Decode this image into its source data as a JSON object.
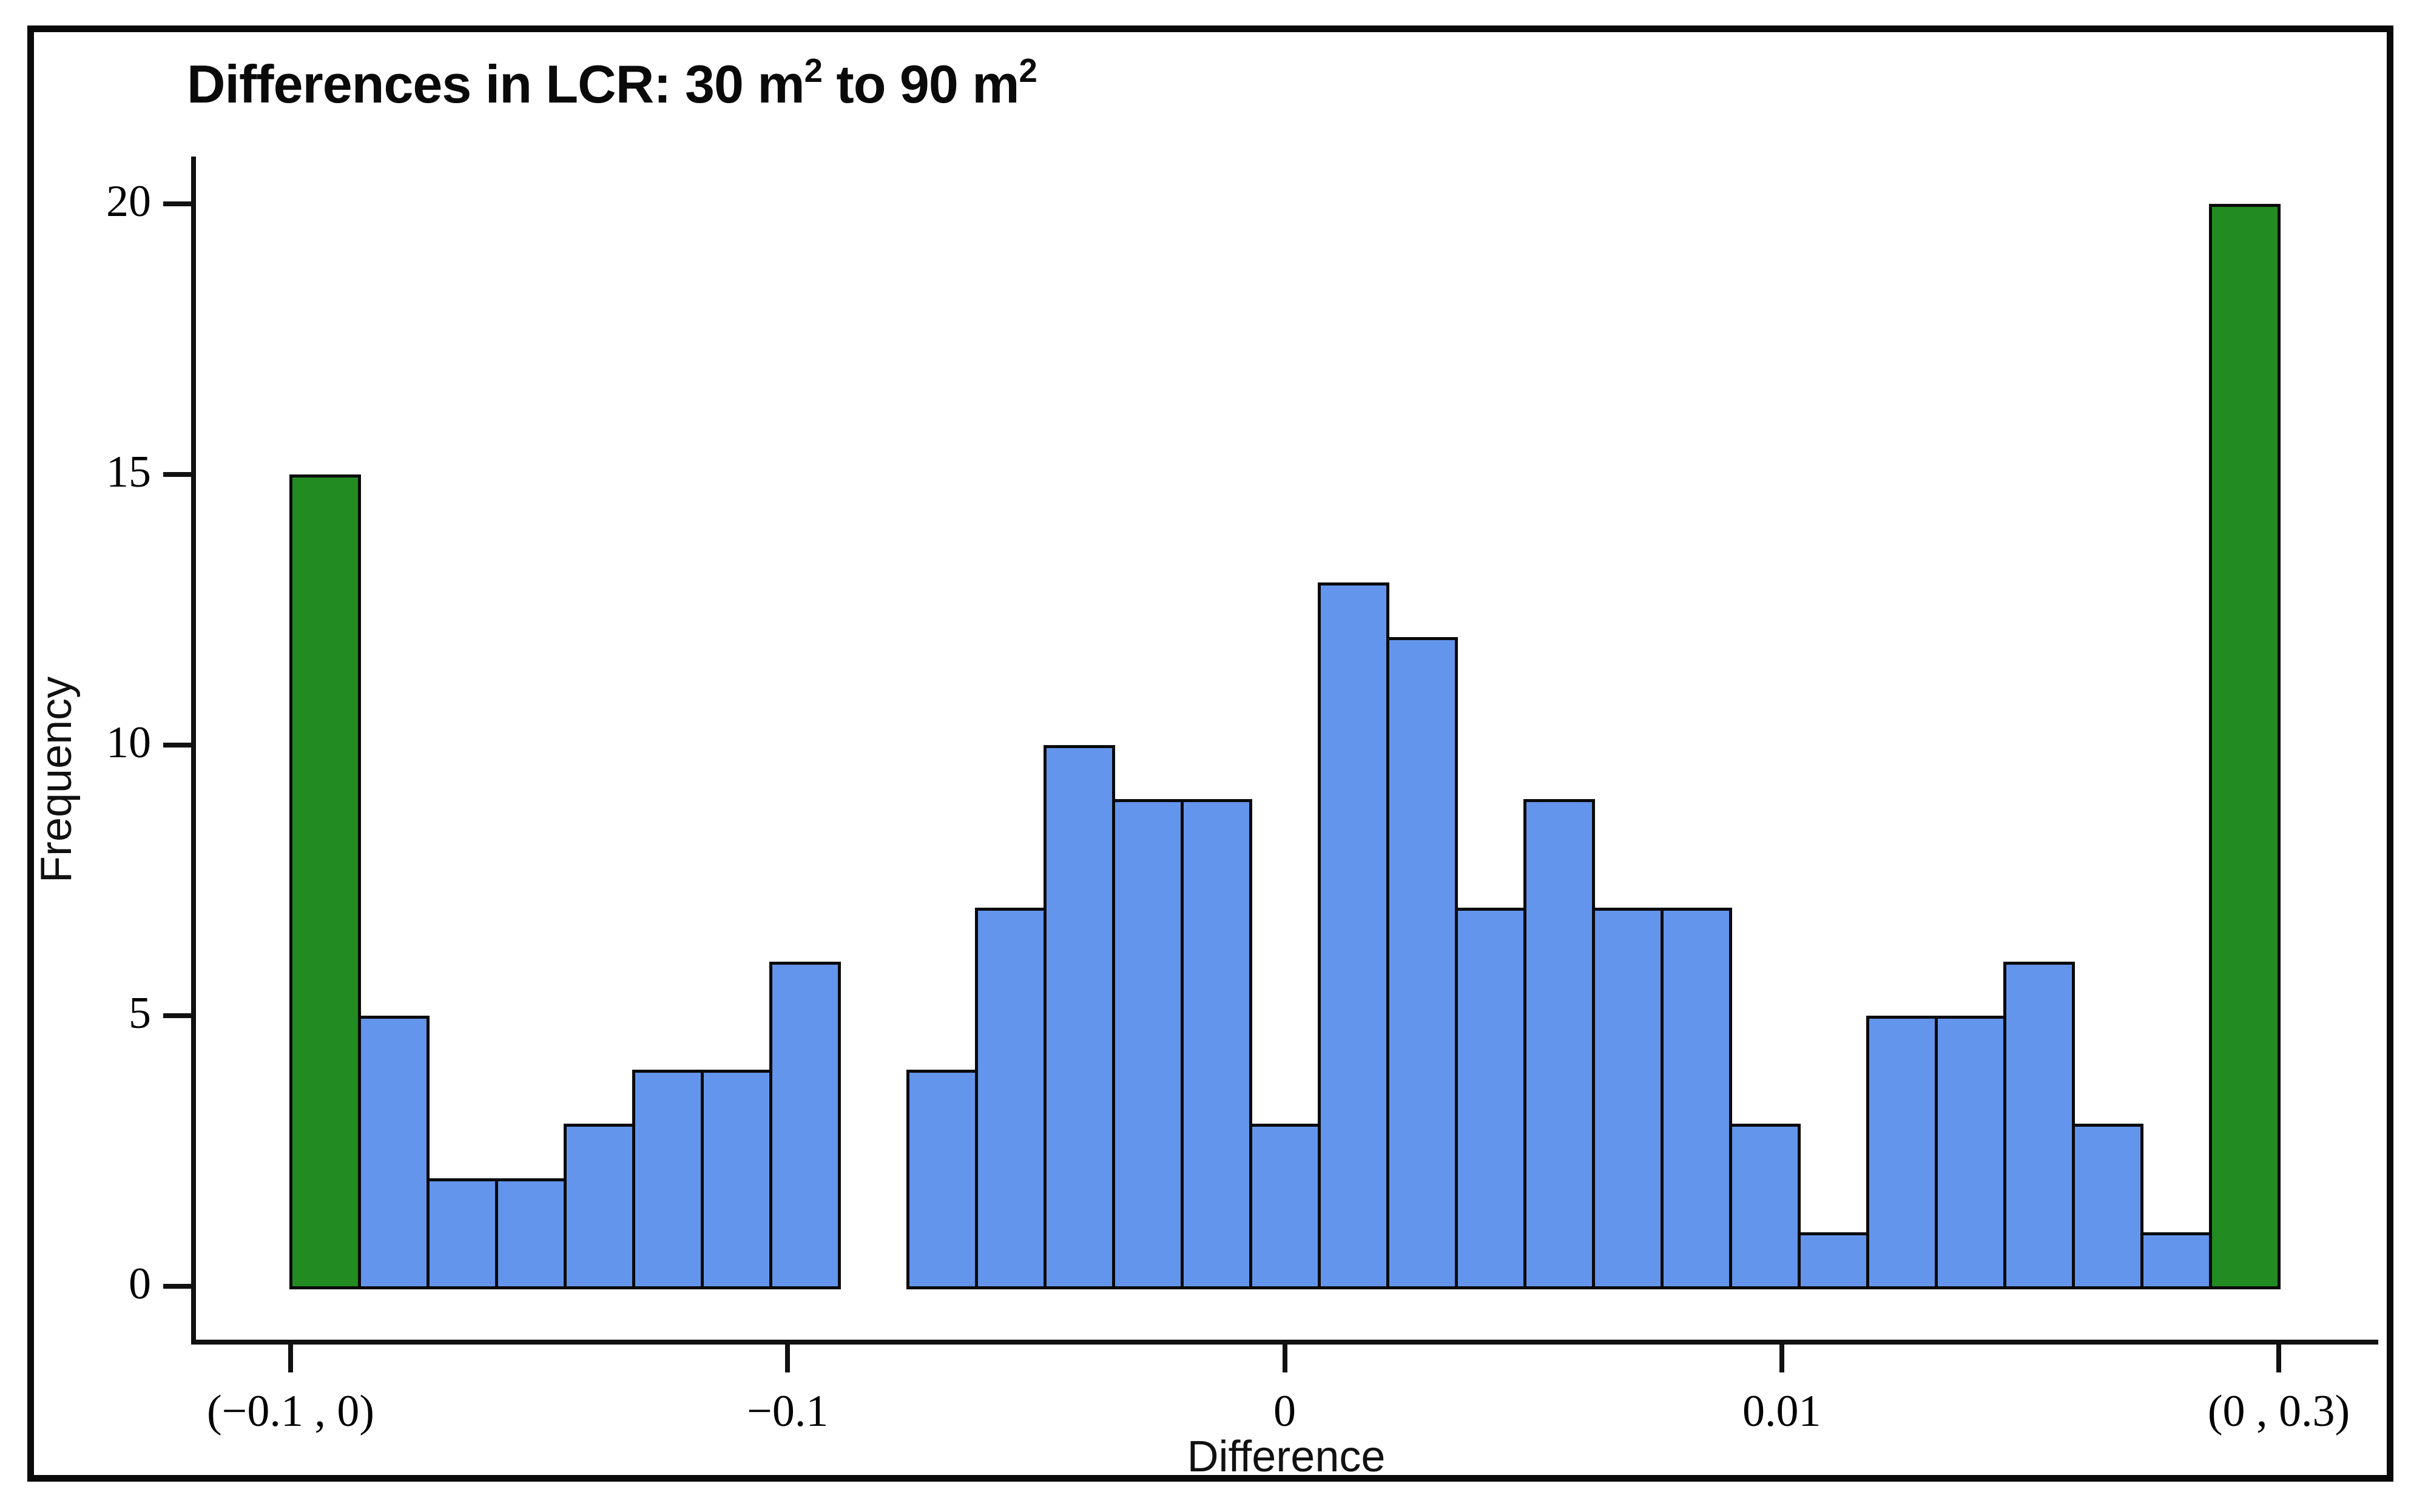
{
  "figure": {
    "title": {
      "part1": "Differences in LCR: 30 m",
      "sup1": "2",
      "part2": " to 90 m",
      "sup2": "2"
    }
  },
  "chart_data": {
    "type": "bar",
    "subtype": "histogram",
    "title": "Differences in LCR: 30 m² to 90 m²",
    "xlabel": "Difference",
    "ylabel": "Frequency",
    "ylim": [
      0,
      20
    ],
    "y_ticks": [
      0,
      5,
      10,
      15,
      20
    ],
    "x_tick_labels": [
      "(−0.1 , 0)",
      "−0.1",
      "0",
      "0.01",
      "(0 , 0.3)"
    ],
    "grid": false,
    "legend_position": "none",
    "colors": {
      "bar_blue": "#6495ED",
      "highlight_green": "#228B22",
      "axis": "#111111"
    },
    "bins": [
      {
        "value": 15,
        "color": "highlight_green"
      },
      {
        "value": 5,
        "color": "bar_blue"
      },
      {
        "value": 2,
        "color": "bar_blue"
      },
      {
        "value": 2,
        "color": "bar_blue"
      },
      {
        "value": 3,
        "color": "bar_blue"
      },
      {
        "value": 4,
        "color": "bar_blue"
      },
      {
        "value": 4,
        "color": "bar_blue"
      },
      {
        "value": 6,
        "color": "bar_blue"
      },
      {
        "value": 0,
        "color": "bar_blue"
      },
      {
        "value": 4,
        "color": "bar_blue"
      },
      {
        "value": 7,
        "color": "bar_blue"
      },
      {
        "value": 10,
        "color": "bar_blue"
      },
      {
        "value": 9,
        "color": "bar_blue"
      },
      {
        "value": 9,
        "color": "bar_blue"
      },
      {
        "value": 3,
        "color": "bar_blue"
      },
      {
        "value": 13,
        "color": "bar_blue"
      },
      {
        "value": 12,
        "color": "bar_blue"
      },
      {
        "value": 7,
        "color": "bar_blue"
      },
      {
        "value": 9,
        "color": "bar_blue"
      },
      {
        "value": 7,
        "color": "bar_blue"
      },
      {
        "value": 7,
        "color": "bar_blue"
      },
      {
        "value": 3,
        "color": "bar_blue"
      },
      {
        "value": 1,
        "color": "bar_blue"
      },
      {
        "value": 5,
        "color": "bar_blue"
      },
      {
        "value": 5,
        "color": "bar_blue"
      },
      {
        "value": 6,
        "color": "bar_blue"
      },
      {
        "value": 3,
        "color": "bar_blue"
      },
      {
        "value": 1,
        "color": "bar_blue"
      },
      {
        "value": 20,
        "color": "highlight_green"
      }
    ]
  }
}
